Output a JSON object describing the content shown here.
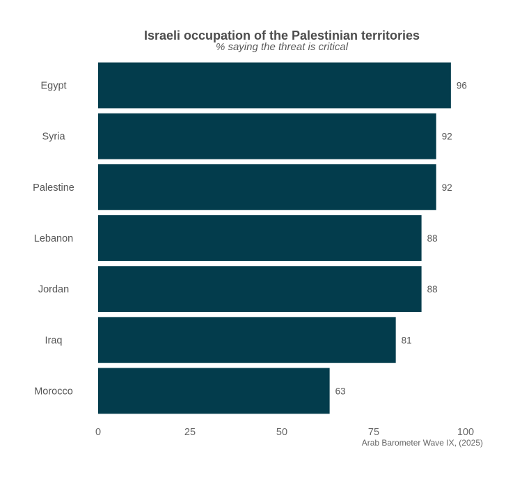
{
  "chart_data": {
    "type": "bar",
    "orientation": "horizontal",
    "title": "Israeli occupation of the Palestinian territories",
    "subtitle": "% saying the threat is critical",
    "categories": [
      "Egypt",
      "Syria",
      "Palestine",
      "Lebanon",
      "Jordan",
      "Iraq",
      "Morocco"
    ],
    "values": [
      96,
      92,
      92,
      88,
      88,
      81,
      63
    ],
    "value_labels": [
      "96",
      "92",
      "92",
      "88",
      "88",
      "81",
      "63"
    ],
    "xlim": [
      0,
      100
    ],
    "xticks": [
      0,
      25,
      50,
      75,
      100
    ],
    "xtick_labels": [
      "0",
      "25",
      "50",
      "75",
      "100"
    ],
    "grid": false,
    "bar_color": "#033c4c",
    "caption": "Arab Barometer Wave IX, (2025)"
  }
}
